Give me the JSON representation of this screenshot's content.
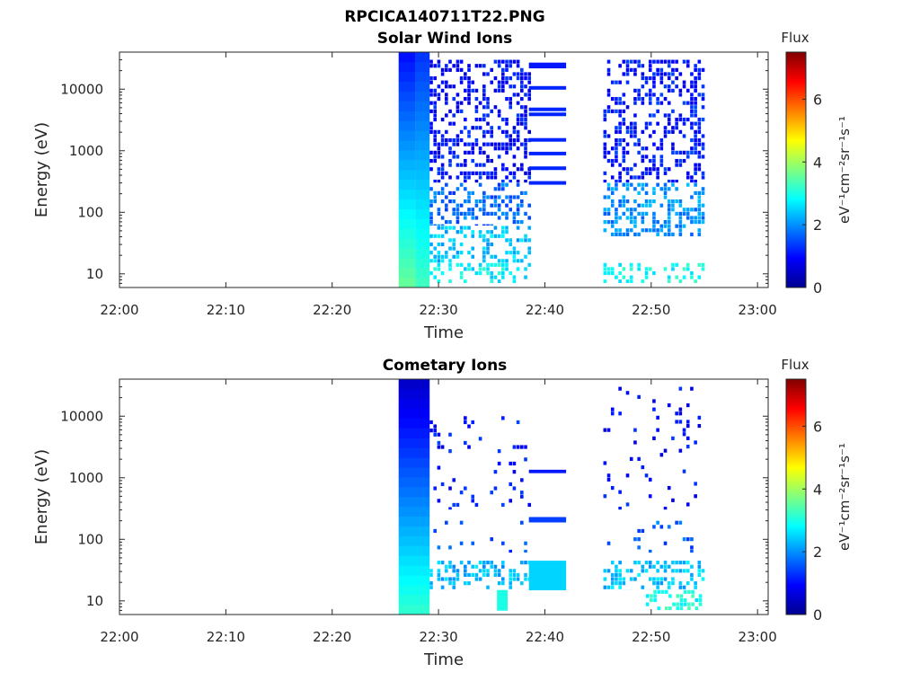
{
  "figure": {
    "title": "RPCICA140711T22.PNG"
  },
  "chart_data": [
    {
      "type": "heatmap",
      "title": "Solar Wind Ions",
      "xlabel": "Time",
      "ylabel": "Energy (eV)",
      "x_range": [
        "22:00",
        "23:01"
      ],
      "x_ticks": [
        "22:00",
        "22:10",
        "22:20",
        "22:30",
        "22:40",
        "22:50",
        "23:00"
      ],
      "y_scale": "log",
      "y_range": [
        6,
        40000
      ],
      "y_ticks": [
        {
          "label": "10",
          "value": 10
        },
        {
          "label": "100",
          "value": 100
        },
        {
          "label": "1000",
          "value": 1000
        },
        {
          "label": "10000",
          "value": 10000
        }
      ],
      "colorbar": {
        "label": "Flux",
        "unit_label": "eV⁻¹cm⁻²sr⁻¹s⁻¹",
        "range": [
          0,
          7.5
        ],
        "ticks": [
          "0",
          "2",
          "4",
          "6"
        ],
        "colormap": "jet"
      },
      "blocks": [
        {
          "t0": "22:26:15",
          "t1": "22:27:50",
          "e0": 6,
          "e1": 40000,
          "flux": [
            3.6,
            1.0
          ]
        },
        {
          "t0": "22:27:50",
          "t1": "22:29:10",
          "e0": 6,
          "e1": 40000,
          "flux": [
            3.3,
            1.3
          ]
        },
        {
          "t0": "22:29:10",
          "t1": "22:38:30",
          "e0": 300,
          "e1": 30000,
          "flux": 1.0,
          "pattern": "scattered"
        },
        {
          "t0": "22:29:10",
          "t1": "22:38:30",
          "e0": 60,
          "e1": 300,
          "flux": 1.7,
          "pattern": "scattered"
        },
        {
          "t0": "22:29:10",
          "t1": "22:38:30",
          "e0": 15,
          "e1": 60,
          "flux": 2.4,
          "pattern": "scattered"
        },
        {
          "t0": "22:29:10",
          "t1": "22:38:30",
          "e0": 7,
          "e1": 15,
          "flux": 2.8,
          "pattern": "scattered"
        },
        {
          "t0": "22:38:30",
          "t1": "22:42:00",
          "e0": 22000,
          "e1": 27000,
          "flux": 1.1
        },
        {
          "t0": "22:38:30",
          "t1": "22:42:00",
          "e0": 270,
          "e1": 330,
          "flux": 1.2,
          "pattern": "horizontal lines at 10500, 4700, 3900, 1500, 900, 520, 300 eV"
        },
        {
          "t0": "22:45:30",
          "t1": "22:55:00",
          "e0": 300,
          "e1": 30000,
          "flux": 1.1,
          "pattern": "scattered"
        },
        {
          "t0": "22:45:30",
          "t1": "22:55:00",
          "e0": 40,
          "e1": 300,
          "flux": 2.0,
          "pattern": "scattered"
        },
        {
          "t0": "22:45:30",
          "t1": "22:55:00",
          "e0": 7,
          "e1": 15,
          "flux": 2.9,
          "pattern": "scattered"
        }
      ]
    },
    {
      "type": "heatmap",
      "title": "Cometary Ions",
      "xlabel": "Time",
      "ylabel": "Energy (eV)",
      "x_range": [
        "22:00",
        "23:01"
      ],
      "x_ticks": [
        "22:00",
        "22:10",
        "22:20",
        "22:30",
        "22:40",
        "22:50",
        "23:00"
      ],
      "y_scale": "log",
      "y_range": [
        6,
        40000
      ],
      "y_ticks": [
        {
          "label": "10",
          "value": 10
        },
        {
          "label": "100",
          "value": 100
        },
        {
          "label": "1000",
          "value": 1000
        },
        {
          "label": "10000",
          "value": 10000
        }
      ],
      "colorbar": {
        "label": "Flux",
        "unit_label": "eV⁻¹cm⁻²sr⁻¹s⁻¹",
        "range": [
          0,
          7.5
        ],
        "ticks": [
          "0",
          "2",
          "4",
          "6"
        ],
        "colormap": "jet"
      },
      "blocks": [
        {
          "t0": "22:26:15",
          "t1": "22:29:10",
          "e0": 6,
          "e1": 40000,
          "flux": [
            3.2,
            0.5
          ]
        },
        {
          "t0": "22:29:10",
          "t1": "22:38:30",
          "e0": 300,
          "e1": 10000,
          "flux": 1.1,
          "pattern": "sparse"
        },
        {
          "t0": "22:29:10",
          "t1": "22:38:30",
          "e0": 60,
          "e1": 200,
          "flux": 1.5,
          "pattern": "sparse"
        },
        {
          "t0": "22:29:10",
          "t1": "22:38:30",
          "e0": 15,
          "e1": 45,
          "flux": 2.3,
          "pattern": "scattered"
        },
        {
          "t0": "22:35:30",
          "t1": "22:36:30",
          "e0": 7,
          "e1": 15,
          "flux": 3.0
        },
        {
          "t0": "22:38:30",
          "t1": "22:42:00",
          "e0": 15,
          "e1": 45,
          "flux": 2.5
        },
        {
          "t0": "22:38:30",
          "t1": "22:42:00",
          "e0": 190,
          "e1": 230,
          "flux": 1.4
        },
        {
          "t0": "22:38:30",
          "t1": "22:42:00",
          "e0": 1200,
          "e1": 1350,
          "flux": 1.1
        },
        {
          "t0": "22:45:30",
          "t1": "22:55:00",
          "e0": 300,
          "e1": 30000,
          "flux": 1.0,
          "pattern": "sparse"
        },
        {
          "t0": "22:45:30",
          "t1": "22:55:00",
          "e0": 60,
          "e1": 200,
          "flux": 1.6,
          "pattern": "sparse"
        },
        {
          "t0": "22:45:30",
          "t1": "22:55:00",
          "e0": 15,
          "e1": 45,
          "flux": 2.4,
          "pattern": "scattered"
        },
        {
          "t0": "22:49:30",
          "t1": "22:54:30",
          "e0": 7,
          "e1": 15,
          "flux": 3.0,
          "pattern": "scattered"
        }
      ]
    }
  ]
}
